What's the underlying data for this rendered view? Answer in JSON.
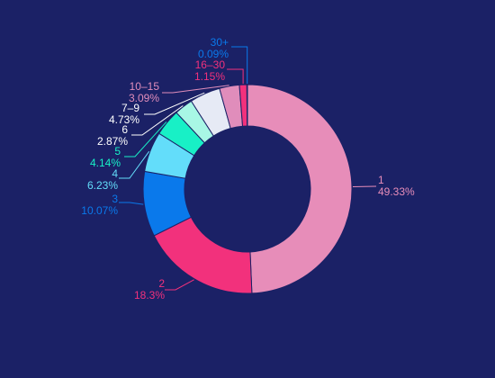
{
  "theme": {
    "background": "#1b2166"
  },
  "chart_data": {
    "type": "pie",
    "title": "",
    "donut": true,
    "slices": [
      {
        "label": "1",
        "value": 49.33,
        "value_label": "49.33%",
        "color": "#e78db9",
        "label_color": "#e78db9"
      },
      {
        "label": "2",
        "value": 18.3,
        "value_label": "18.3%",
        "color": "#f2317c",
        "label_color": "#f2317c"
      },
      {
        "label": "3",
        "value": 10.07,
        "value_label": "10.07%",
        "color": "#0a79eb",
        "label_color": "#0a79eb"
      },
      {
        "label": "4",
        "value": 6.23,
        "value_label": "6.23%",
        "color": "#63ddfa",
        "label_color": "#63ddfa"
      },
      {
        "label": "5",
        "value": 4.14,
        "value_label": "4.14%",
        "color": "#18f0c6",
        "label_color": "#18f0c6"
      },
      {
        "label": "6",
        "value": 2.87,
        "value_label": "2.87%",
        "color": "#a8f7e5",
        "label_color": "#ffffff"
      },
      {
        "label": "7–9",
        "value": 4.73,
        "value_label": "4.73%",
        "color": "#e6eaf5",
        "label_color": "#ffffff"
      },
      {
        "label": "10–15",
        "value": 3.09,
        "value_label": "3.09%",
        "color": "#e08dbb",
        "label_color": "#e08dbb"
      },
      {
        "label": "16–30",
        "value": 1.15,
        "value_label": "1.15%",
        "color": "#f2317c",
        "label_color": "#f2317c"
      },
      {
        "label": "30+",
        "value": 0.09,
        "value_label": "0.09%",
        "color": "#0a79eb",
        "label_color": "#0a79eb"
      }
    ]
  }
}
